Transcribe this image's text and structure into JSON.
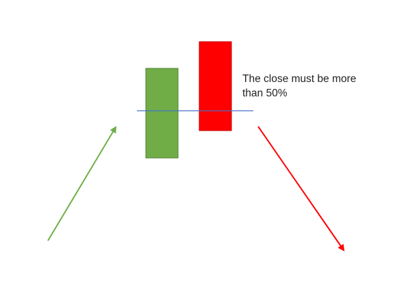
{
  "annotation": {
    "line1": "The close must be more",
    "line2": "than 50%"
  },
  "colors": {
    "bullish_candle": "#70ad47",
    "bullish_candle_border": "#507e32",
    "bearish_candle": "#ff0000",
    "bearish_candle_border": "#c00000",
    "midpoint_line": "#4472c4",
    "uptrend_arrow": "#70ad47",
    "downtrend_arrow": "#ff0000"
  },
  "elements": {
    "uptrend_arrow": "up-arrow-icon",
    "downtrend_arrow": "down-arrow-icon"
  }
}
